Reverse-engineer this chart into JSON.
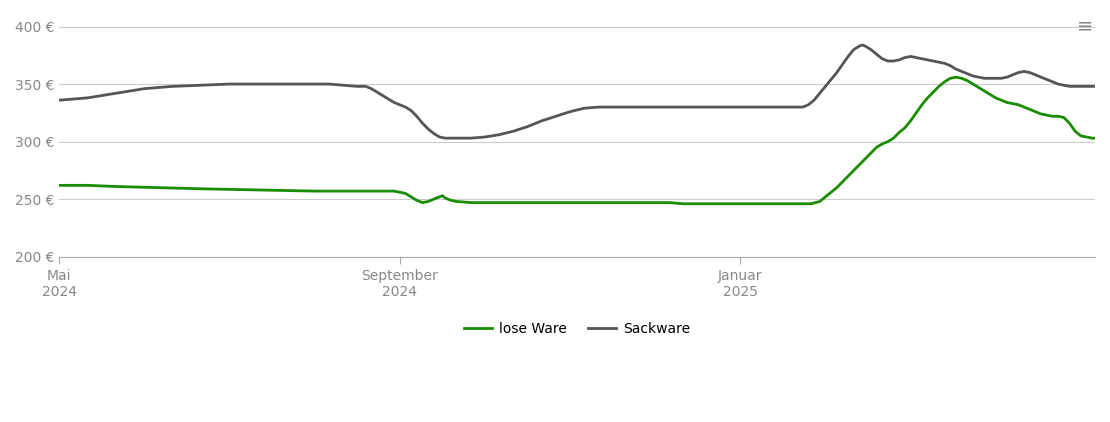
{
  "background_color": "#ffffff",
  "line_lose_color": "#1a8c00",
  "line_sack_color": "#555555",
  "line_width": 2.0,
  "ylim": [
    200,
    410
  ],
  "yticks": [
    200,
    250,
    300,
    350,
    400
  ],
  "ytick_labels": [
    "200 €",
    "250 €",
    "300 €",
    "350 €",
    "400 €"
  ],
  "grid_color": "#cccccc",
  "xlim": [
    0,
    365
  ],
  "xtick_positions": [
    0,
    120,
    240
  ],
  "xtick_labels": [
    "Mai\n2024",
    "September\n2024",
    "Januar\n2025"
  ],
  "lose_ware": [
    [
      0,
      262
    ],
    [
      10,
      262
    ],
    [
      20,
      261
    ],
    [
      35,
      260
    ],
    [
      50,
      259
    ],
    [
      70,
      258
    ],
    [
      90,
      257
    ],
    [
      110,
      257
    ],
    [
      118,
      257
    ],
    [
      120,
      256
    ],
    [
      122,
      255
    ],
    [
      124,
      252
    ],
    [
      126,
      249
    ],
    [
      128,
      247
    ],
    [
      130,
      248
    ],
    [
      132,
      250
    ],
    [
      134,
      252
    ],
    [
      135,
      253
    ],
    [
      136,
      251
    ],
    [
      137,
      250
    ],
    [
      138,
      249
    ],
    [
      140,
      248
    ],
    [
      145,
      247
    ],
    [
      150,
      247
    ],
    [
      155,
      247
    ],
    [
      160,
      247
    ],
    [
      165,
      247
    ],
    [
      170,
      247
    ],
    [
      175,
      247
    ],
    [
      180,
      247
    ],
    [
      185,
      247
    ],
    [
      190,
      247
    ],
    [
      195,
      247
    ],
    [
      200,
      247
    ],
    [
      205,
      247
    ],
    [
      210,
      247
    ],
    [
      215,
      247
    ],
    [
      220,
      246
    ],
    [
      225,
      246
    ],
    [
      230,
      246
    ],
    [
      235,
      246
    ],
    [
      240,
      246
    ],
    [
      245,
      246
    ],
    [
      248,
      246
    ],
    [
      250,
      246
    ],
    [
      255,
      246
    ],
    [
      260,
      246
    ],
    [
      263,
      246
    ],
    [
      265,
      246
    ],
    [
      268,
      248
    ],
    [
      270,
      252
    ],
    [
      272,
      256
    ],
    [
      274,
      260
    ],
    [
      276,
      265
    ],
    [
      278,
      270
    ],
    [
      280,
      275
    ],
    [
      282,
      280
    ],
    [
      284,
      285
    ],
    [
      286,
      290
    ],
    [
      288,
      295
    ],
    [
      290,
      298
    ],
    [
      292,
      300
    ],
    [
      294,
      303
    ],
    [
      296,
      308
    ],
    [
      298,
      312
    ],
    [
      300,
      318
    ],
    [
      302,
      325
    ],
    [
      304,
      332
    ],
    [
      306,
      338
    ],
    [
      308,
      343
    ],
    [
      310,
      348
    ],
    [
      312,
      352
    ],
    [
      314,
      355
    ],
    [
      316,
      356
    ],
    [
      318,
      355
    ],
    [
      320,
      353
    ],
    [
      322,
      350
    ],
    [
      324,
      347
    ],
    [
      326,
      344
    ],
    [
      328,
      341
    ],
    [
      330,
      338
    ],
    [
      332,
      336
    ],
    [
      334,
      334
    ],
    [
      336,
      333
    ],
    [
      338,
      332
    ],
    [
      340,
      330
    ],
    [
      342,
      328
    ],
    [
      344,
      326
    ],
    [
      346,
      324
    ],
    [
      348,
      323
    ],
    [
      350,
      322
    ],
    [
      352,
      322
    ],
    [
      354,
      321
    ],
    [
      356,
      316
    ],
    [
      358,
      309
    ],
    [
      360,
      305
    ],
    [
      362,
      304
    ],
    [
      364,
      303
    ],
    [
      365,
      303
    ]
  ],
  "sack_ware": [
    [
      0,
      336
    ],
    [
      5,
      337
    ],
    [
      10,
      338
    ],
    [
      15,
      340
    ],
    [
      20,
      342
    ],
    [
      25,
      344
    ],
    [
      30,
      346
    ],
    [
      35,
      347
    ],
    [
      40,
      348
    ],
    [
      50,
      349
    ],
    [
      60,
      350
    ],
    [
      70,
      350
    ],
    [
      80,
      350
    ],
    [
      90,
      350
    ],
    [
      95,
      350
    ],
    [
      100,
      349
    ],
    [
      105,
      348
    ],
    [
      108,
      348
    ],
    [
      110,
      346
    ],
    [
      112,
      343
    ],
    [
      114,
      340
    ],
    [
      116,
      337
    ],
    [
      118,
      334
    ],
    [
      120,
      332
    ],
    [
      122,
      330
    ],
    [
      124,
      327
    ],
    [
      126,
      322
    ],
    [
      128,
      316
    ],
    [
      130,
      311
    ],
    [
      132,
      307
    ],
    [
      134,
      304
    ],
    [
      136,
      303
    ],
    [
      138,
      303
    ],
    [
      140,
      303
    ],
    [
      145,
      303
    ],
    [
      150,
      304
    ],
    [
      155,
      306
    ],
    [
      160,
      309
    ],
    [
      165,
      313
    ],
    [
      170,
      318
    ],
    [
      175,
      322
    ],
    [
      180,
      326
    ],
    [
      185,
      329
    ],
    [
      190,
      330
    ],
    [
      195,
      330
    ],
    [
      200,
      330
    ],
    [
      205,
      330
    ],
    [
      210,
      330
    ],
    [
      215,
      330
    ],
    [
      220,
      330
    ],
    [
      225,
      330
    ],
    [
      230,
      330
    ],
    [
      235,
      330
    ],
    [
      240,
      330
    ],
    [
      245,
      330
    ],
    [
      250,
      330
    ],
    [
      255,
      330
    ],
    [
      260,
      330
    ],
    [
      262,
      330
    ],
    [
      264,
      332
    ],
    [
      266,
      336
    ],
    [
      268,
      342
    ],
    [
      270,
      348
    ],
    [
      272,
      354
    ],
    [
      274,
      360
    ],
    [
      276,
      367
    ],
    [
      278,
      374
    ],
    [
      280,
      380
    ],
    [
      282,
      383
    ],
    [
      283,
      384
    ],
    [
      284,
      383
    ],
    [
      286,
      380
    ],
    [
      288,
      376
    ],
    [
      290,
      372
    ],
    [
      292,
      370
    ],
    [
      294,
      370
    ],
    [
      296,
      371
    ],
    [
      298,
      373
    ],
    [
      300,
      374
    ],
    [
      302,
      373
    ],
    [
      304,
      372
    ],
    [
      306,
      371
    ],
    [
      308,
      370
    ],
    [
      310,
      369
    ],
    [
      312,
      368
    ],
    [
      314,
      366
    ],
    [
      316,
      363
    ],
    [
      318,
      361
    ],
    [
      320,
      359
    ],
    [
      322,
      357
    ],
    [
      324,
      356
    ],
    [
      326,
      355
    ],
    [
      328,
      355
    ],
    [
      330,
      355
    ],
    [
      332,
      355
    ],
    [
      334,
      356
    ],
    [
      336,
      358
    ],
    [
      338,
      360
    ],
    [
      340,
      361
    ],
    [
      342,
      360
    ],
    [
      344,
      358
    ],
    [
      346,
      356
    ],
    [
      348,
      354
    ],
    [
      350,
      352
    ],
    [
      352,
      350
    ],
    [
      354,
      349
    ],
    [
      356,
      348
    ],
    [
      358,
      348
    ],
    [
      360,
      348
    ],
    [
      362,
      348
    ],
    [
      364,
      348
    ],
    [
      365,
      348
    ]
  ]
}
